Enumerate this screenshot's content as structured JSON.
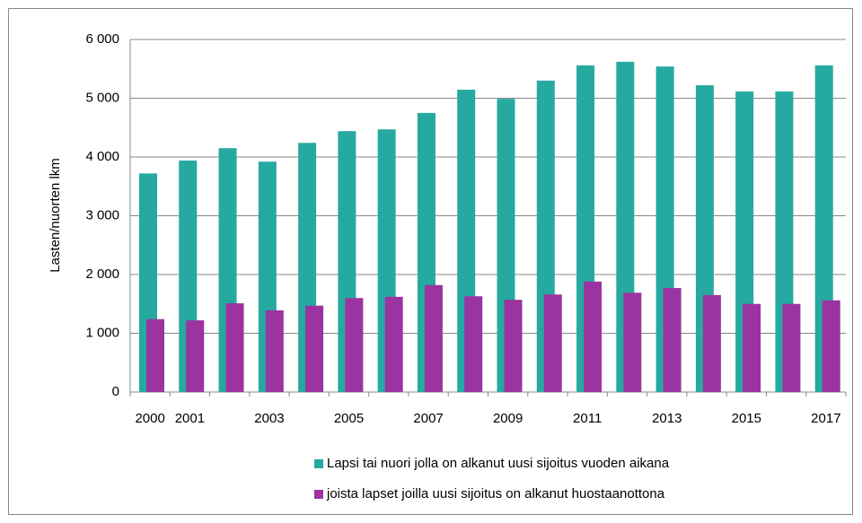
{
  "chart_data": {
    "type": "bar",
    "categories": [
      "2000",
      "2001",
      null,
      "2003",
      null,
      "2005",
      null,
      "2007",
      null,
      "2009",
      null,
      "2011",
      null,
      "2013",
      null,
      "2015",
      null,
      "2017"
    ],
    "series": [
      {
        "name": "Lapsi tai nuori jolla on alkanut uusi sijoitus vuoden aikana",
        "color": "#26a9a0",
        "values": [
          3720,
          3940,
          4150,
          3920,
          4240,
          4440,
          4470,
          4750,
          5145,
          4990,
          5300,
          5560,
          5620,
          5540,
          5220,
          5115,
          5115,
          5560
        ]
      },
      {
        "name": "joista lapset joilla uusi sijoitus on alkanut huostaanottona",
        "color": "#9b34a0",
        "values": [
          1240,
          1220,
          1510,
          1390,
          1470,
          1600,
          1620,
          1820,
          1630,
          1570,
          1660,
          1880,
          1690,
          1770,
          1650,
          1500,
          1500,
          1560
        ]
      }
    ],
    "y_label": "Lasten/nuorten lkm",
    "ylim": [
      0,
      6000
    ],
    "yticks": [
      0,
      {
        "value": 1000,
        "label": "1 000"
      },
      {
        "value": 2000,
        "label": "2 000"
      },
      {
        "value": 3000,
        "label": "3 000"
      },
      {
        "value": 4000,
        "label": "4 000"
      },
      {
        "value": 5000,
        "label": "5 000"
      },
      {
        "value": 6000,
        "label": "6 000"
      }
    ],
    "grid": true,
    "legend": "bottom"
  }
}
